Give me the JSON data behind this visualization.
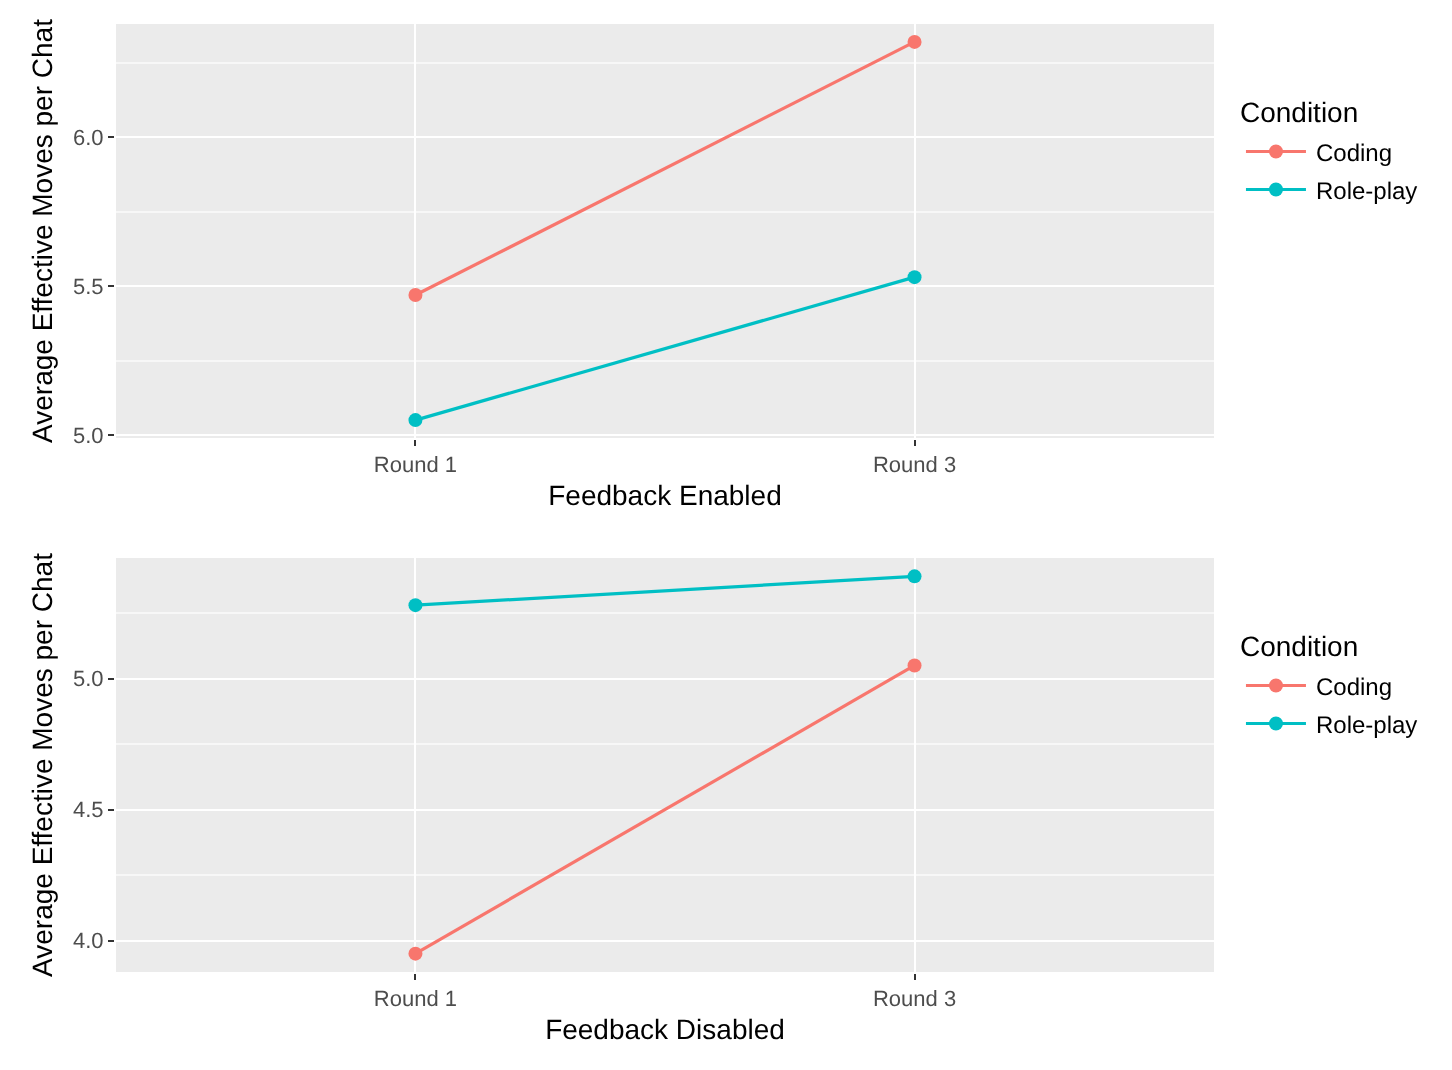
{
  "chart_data": [
    {
      "type": "line",
      "xlabel": "Feedback Enabled",
      "ylabel": "Average Effective Moves per Chat",
      "legend_title": "Condition",
      "categories": [
        "Round 1",
        "Round 3"
      ],
      "series": [
        {
          "name": "Coding",
          "color": "#f8766d",
          "values": [
            5.47,
            6.32
          ]
        },
        {
          "name": "Role-play",
          "color": "#00bfc4",
          "values": [
            5.05,
            5.53
          ]
        }
      ],
      "ylim": [
        4.99,
        6.38
      ],
      "yticks": [
        {
          "value": 5.0,
          "label": "5.0"
        },
        {
          "value": 5.5,
          "label": "5.5"
        },
        {
          "value": 6.0,
          "label": "6.0"
        }
      ],
      "grid": true,
      "legend": "right",
      "marker": "circle",
      "line_style": "solid"
    },
    {
      "type": "line",
      "xlabel": "Feedback Disabled",
      "ylabel": "Average Effective Moves per Chat",
      "legend_title": "Condition",
      "categories": [
        "Round 1",
        "Round 3"
      ],
      "series": [
        {
          "name": "Coding",
          "color": "#f8766d",
          "values": [
            3.95,
            5.05
          ]
        },
        {
          "name": "Role-play",
          "color": "#00bfc4",
          "values": [
            5.28,
            5.39
          ]
        }
      ],
      "ylim": [
        3.88,
        5.46
      ],
      "yticks": [
        {
          "value": 4.0,
          "label": "4.0"
        },
        4.5,
        {
          "value": 5.0,
          "label": "5.0"
        }
      ],
      "grid": true,
      "legend": "right",
      "marker": "circle",
      "line_style": "solid"
    }
  ]
}
